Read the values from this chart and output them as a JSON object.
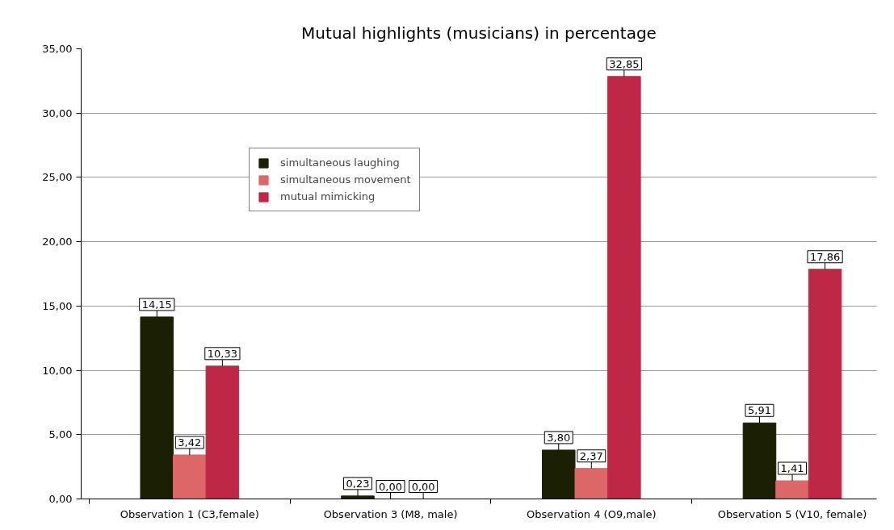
{
  "chart_data": {
    "type": "bar",
    "title": "Mutual highlights (musicians) in percentage",
    "categories": [
      "Observation 1 (C3,female)",
      "Observation 3 (M8, male)",
      "Observation 4 (O9,male)",
      "Observation 5 (V10, female)"
    ],
    "series": [
      {
        "name": "simultaneous laughing",
        "color": "#1b1f04",
        "values": [
          14.15,
          0.23,
          3.8,
          5.91
        ],
        "value_labels": [
          "14,15",
          "0,23",
          "3,80",
          "5,91"
        ]
      },
      {
        "name": "simultaneous movement",
        "color": "#dd6666",
        "values": [
          3.42,
          0.0,
          2.37,
          1.41
        ],
        "value_labels": [
          "3,42",
          "0,00",
          "2,37",
          "1,41"
        ]
      },
      {
        "name": "mutual mimicking",
        "color": "#be2846",
        "values": [
          10.33,
          0.0,
          32.85,
          17.86
        ],
        "value_labels": [
          "10,33",
          "0,00",
          "32,85",
          "17,86"
        ]
      }
    ],
    "ylim": [
      0,
      35
    ],
    "yticks": [
      {
        "value": 0,
        "label": "0,00"
      },
      {
        "value": 5,
        "label": "5,00"
      },
      {
        "value": 10,
        "label": "10,00"
      },
      {
        "value": 15,
        "label": "15,00"
      },
      {
        "value": 20,
        "label": "20,00"
      },
      {
        "value": 25,
        "label": "25,00"
      },
      {
        "value": 30,
        "label": "30,00"
      },
      {
        "value": 35,
        "label": "35,00"
      }
    ],
    "grid": "y",
    "legend": "top left"
  }
}
